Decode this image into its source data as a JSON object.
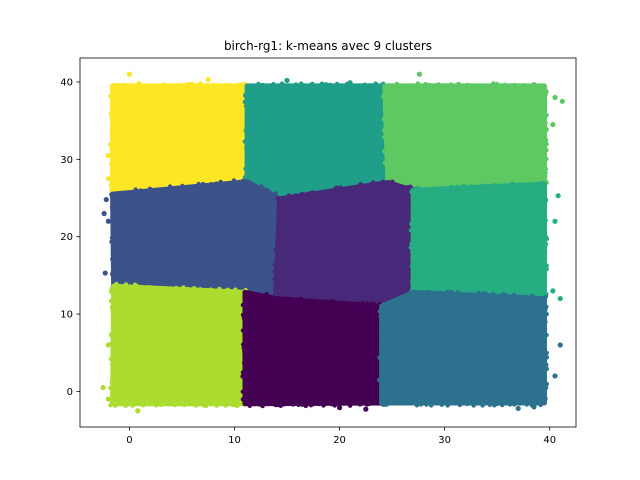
{
  "chart_data": {
    "type": "scatter",
    "title": "birch-rg1: k-means avec 9 clusters",
    "xlabel": "",
    "ylabel": "",
    "xlim": [
      -4.7,
      42.5
    ],
    "ylim": [
      -4.6,
      43.1
    ],
    "xticks": [
      0,
      10,
      20,
      30,
      40
    ],
    "yticks": [
      0,
      10,
      20,
      30,
      40
    ],
    "grid": false,
    "legend": "none",
    "series": [
      {
        "color": "#fde725",
        "region": [
          [
            -1.6,
            25.5
          ],
          [
            11.2,
            27.1
          ],
          [
            11.2,
            39.5
          ],
          [
            -1.6,
            39.5
          ]
        ],
        "points": [
          [
            0,
            41
          ],
          [
            -1.5,
            38
          ],
          [
            7.5,
            40.3
          ],
          [
            -2.0,
            30.5
          ],
          [
            -2.0,
            27.5
          ]
        ]
      },
      {
        "color": "#1f9e89",
        "region": [
          [
            11.2,
            27.1
          ],
          [
            11.2,
            39.5
          ],
          [
            24.3,
            39.5
          ],
          [
            24.6,
            27.0
          ],
          [
            14.3,
            24.9
          ]
        ],
        "points": [
          [
            15.0,
            40.2
          ],
          [
            21.0,
            39.9
          ]
        ]
      },
      {
        "color": "#5ec962",
        "region": [
          [
            24.3,
            39.5
          ],
          [
            39.5,
            39.5
          ],
          [
            39.5,
            26.8
          ],
          [
            27.0,
            26.0
          ],
          [
            24.6,
            27.0
          ]
        ],
        "points": [
          [
            27.6,
            41.0
          ],
          [
            40.5,
            38.0
          ],
          [
            41.2,
            37.5
          ],
          [
            40.3,
            34.5
          ]
        ]
      },
      {
        "color": "#3b528b",
        "region": [
          [
            -1.6,
            25.5
          ],
          [
            11.2,
            27.1
          ],
          [
            14.3,
            24.9
          ],
          [
            13.9,
            12.0
          ],
          [
            11.0,
            12.8
          ],
          [
            -1.5,
            13.6
          ]
        ],
        "points": [
          [
            -2.2,
            24.8
          ],
          [
            -2.4,
            23.0
          ],
          [
            -2.3,
            15.3
          ],
          [
            -2.0,
            22.0
          ]
        ]
      },
      {
        "color": "#482878",
        "region": [
          [
            14.3,
            24.9
          ],
          [
            24.6,
            27.0
          ],
          [
            27.0,
            26.0
          ],
          [
            27.0,
            12.8
          ],
          [
            24.0,
            11.0
          ],
          [
            13.9,
            12.0
          ]
        ],
        "points": []
      },
      {
        "color": "#26ad81",
        "region": [
          [
            27.0,
            26.0
          ],
          [
            39.5,
            26.8
          ],
          [
            39.5,
            12.0
          ],
          [
            27.0,
            12.8
          ]
        ],
        "points": [
          [
            40.8,
            25.3
          ],
          [
            40.5,
            22.0
          ],
          [
            40.3,
            13.0
          ],
          [
            41.0,
            12.0
          ]
        ]
      },
      {
        "color": "#addc30",
        "region": [
          [
            -1.5,
            13.6
          ],
          [
            11.0,
            12.8
          ],
          [
            11.0,
            -1.6
          ],
          [
            -1.6,
            -1.6
          ]
        ],
        "points": [
          [
            -2.5,
            0.5
          ],
          [
            -2.0,
            -1.0
          ],
          [
            0.8,
            -2.5
          ],
          [
            -2.0,
            6.0
          ]
        ]
      },
      {
        "color": "#440154",
        "region": [
          [
            11.0,
            12.8
          ],
          [
            13.9,
            12.0
          ],
          [
            24.0,
            11.0
          ],
          [
            24.0,
            -1.5
          ],
          [
            11.0,
            -1.6
          ]
        ],
        "points": [
          [
            20.0,
            -2.1
          ],
          [
            22.5,
            -2.3
          ]
        ]
      },
      {
        "color": "#2c728e",
        "region": [
          [
            24.0,
            11.0
          ],
          [
            27.0,
            12.8
          ],
          [
            39.5,
            12.0
          ],
          [
            39.5,
            -1.5
          ],
          [
            24.0,
            -1.5
          ]
        ],
        "points": [
          [
            41.0,
            6.0
          ],
          [
            40.5,
            2.0
          ],
          [
            37.0,
            -2.2
          ],
          [
            38.5,
            -2.0
          ]
        ]
      }
    ]
  }
}
